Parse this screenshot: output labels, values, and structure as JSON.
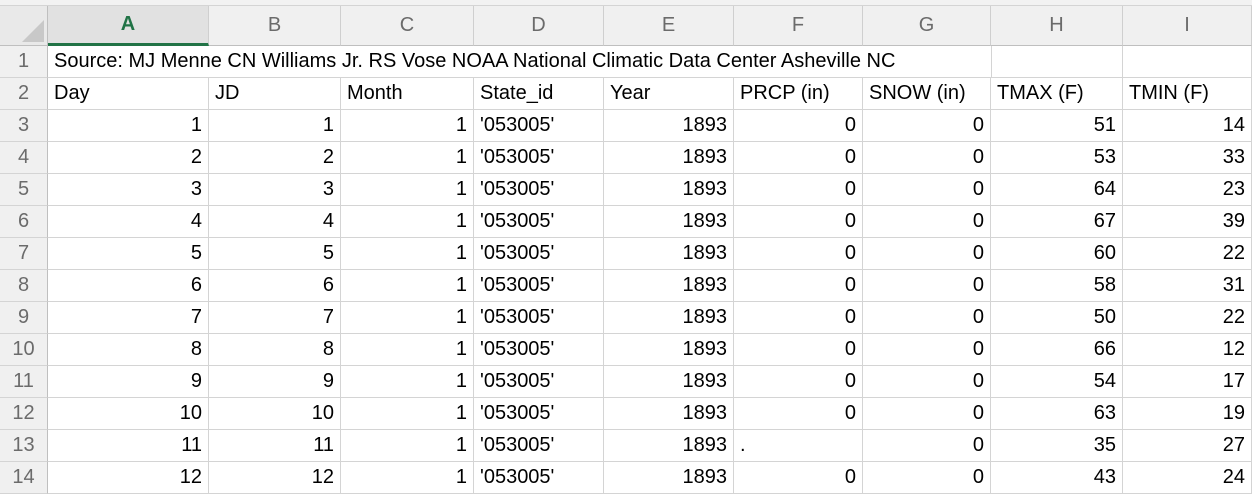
{
  "columns": [
    "A",
    "B",
    "C",
    "D",
    "E",
    "F",
    "G",
    "H",
    "I"
  ],
  "active_column": "A",
  "row_numbers": [
    "1",
    "2",
    "3",
    "4",
    "5",
    "6",
    "7",
    "8",
    "9",
    "10",
    "11",
    "12",
    "13",
    "14"
  ],
  "source_text": "Source: MJ Menne CN Williams Jr. RS Vose NOAA National Climatic Data Center Asheville NC",
  "headers": [
    "Day",
    "JD",
    "Month",
    "State_id",
    "Year",
    "PRCP (in)",
    "SNOW (in)",
    "TMAX (F)",
    "TMIN (F)"
  ],
  "rows": [
    [
      "1",
      "1",
      "1",
      "'053005'",
      "1893",
      "0",
      "0",
      "51",
      "14"
    ],
    [
      "2",
      "2",
      "1",
      "'053005'",
      "1893",
      "0",
      "0",
      "53",
      "33"
    ],
    [
      "3",
      "3",
      "1",
      "'053005'",
      "1893",
      "0",
      "0",
      "64",
      "23"
    ],
    [
      "4",
      "4",
      "1",
      "'053005'",
      "1893",
      "0",
      "0",
      "67",
      "39"
    ],
    [
      "5",
      "5",
      "1",
      "'053005'",
      "1893",
      "0",
      "0",
      "60",
      "22"
    ],
    [
      "6",
      "6",
      "1",
      "'053005'",
      "1893",
      "0",
      "0",
      "58",
      "31"
    ],
    [
      "7",
      "7",
      "1",
      "'053005'",
      "1893",
      "0",
      "0",
      "50",
      "22"
    ],
    [
      "8",
      "8",
      "1",
      "'053005'",
      "1893",
      "0",
      "0",
      "66",
      "12"
    ],
    [
      "9",
      "9",
      "1",
      "'053005'",
      "1893",
      "0",
      "0",
      "54",
      "17"
    ],
    [
      "10",
      "10",
      "1",
      "'053005'",
      "1893",
      "0",
      "0",
      "63",
      "19"
    ],
    [
      "11",
      "11",
      "1",
      "'053005'",
      "1893",
      ".",
      "0",
      "35",
      "27"
    ],
    [
      "12",
      "12",
      "1",
      "'053005'",
      "1893",
      "0",
      "0",
      "43",
      "24"
    ]
  ],
  "colors": {
    "accent": "#217346",
    "header_bg": "#f0f0f0",
    "gridline": "#d4d4d4"
  }
}
